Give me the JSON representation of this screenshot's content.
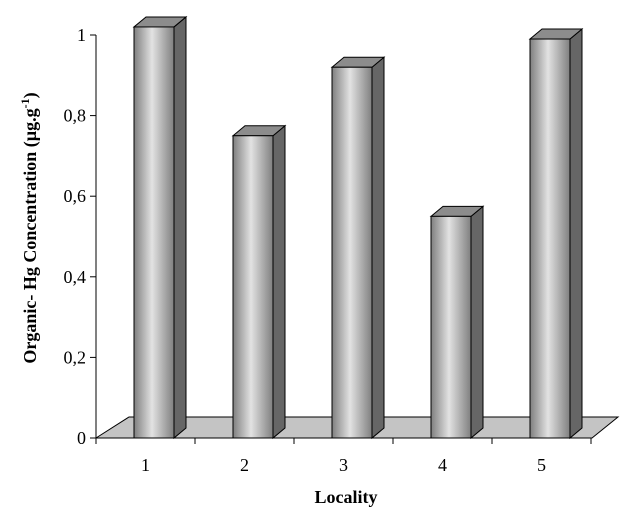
{
  "chart_data": {
    "type": "bar",
    "categories": [
      "1",
      "2",
      "3",
      "4",
      "5"
    ],
    "values": [
      1.02,
      0.75,
      0.92,
      0.55,
      0.99
    ],
    "xlabel": "Locality",
    "ylabel_main": "Organic- Hg Concentration (µg.g",
    "ylabel_sup": "-1",
    "ylabel_end": ")",
    "ylim": [
      0,
      1
    ],
    "y_ticks": [
      {
        "value": 0,
        "label": "0"
      },
      {
        "value": 0.2,
        "label": "0,2"
      },
      {
        "value": 0.4,
        "label": "0,4"
      },
      {
        "value": 0.6,
        "label": "0,6"
      },
      {
        "value": 0.8,
        "label": "0,8"
      },
      {
        "value": 1,
        "label": "1"
      }
    ],
    "grid": false,
    "style": "3d-cylinder-bars",
    "colors": {
      "bar_light": "#e2e2e2",
      "bar_dark": "#7f7f7f",
      "bar_side": "#666666",
      "bar_top": "#8c8c8c",
      "floor": "#c4c4c4",
      "axis": "#000000"
    }
  }
}
